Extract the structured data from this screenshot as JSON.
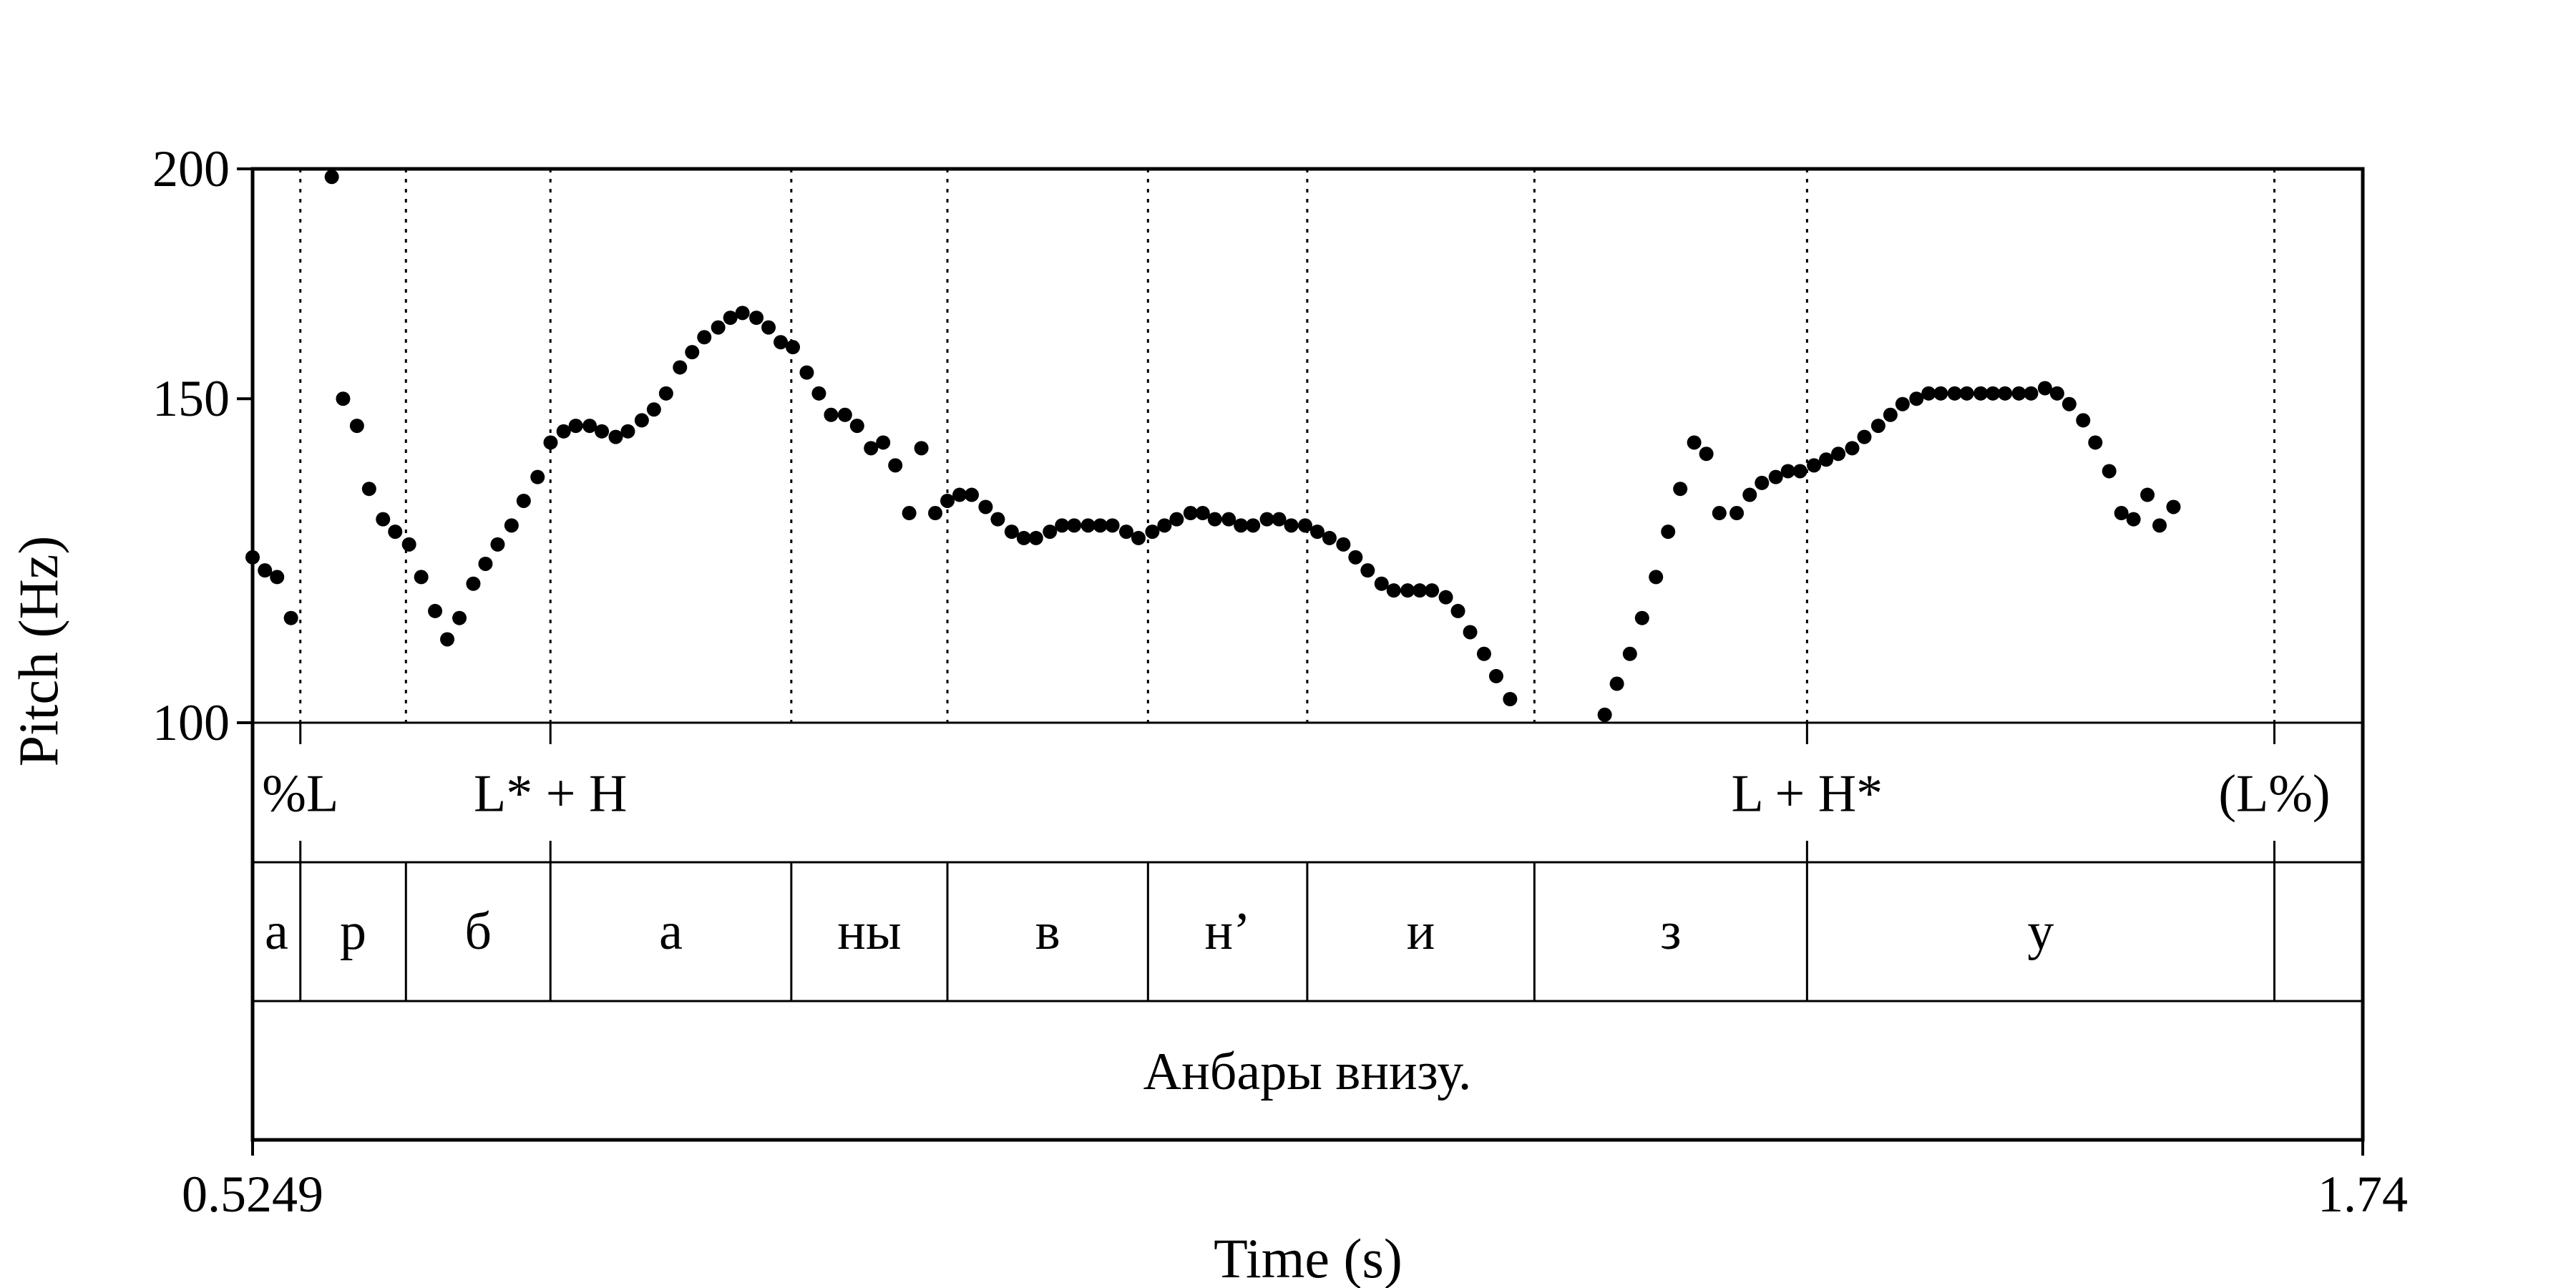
{
  "chart_data": {
    "type": "scatter",
    "title": "",
    "xlabel": "Time (s)",
    "ylabel": "Pitch (Hz)",
    "xlim": [
      0.5249,
      1.74
    ],
    "ylim": [
      100,
      200
    ],
    "y_scale": "log",
    "yticks": [
      "100",
      "150",
      "200"
    ],
    "xticks": [
      "0.5249",
      "1.74"
    ],
    "boundaries": [
      0.5524,
      0.6132,
      0.6964,
      0.8351,
      0.925,
      1.0405,
      1.1322,
      1.263,
      1.42,
      1.6891
    ],
    "tone_tier": [
      {
        "label": "%L",
        "time": 0.5524
      },
      {
        "label": "L* + H",
        "time": 0.6964
      },
      {
        "label": "L + H*",
        "time": 1.42
      },
      {
        "label": "(L%)",
        "time": 1.6891
      }
    ],
    "segments": [
      {
        "label": "а",
        "start": 0.5249,
        "end": 0.5524
      },
      {
        "label": "р",
        "start": 0.5524,
        "end": 0.6132
      },
      {
        "label": "б",
        "start": 0.6132,
        "end": 0.6964
      },
      {
        "label": "а",
        "start": 0.6964,
        "end": 0.8351
      },
      {
        "label": "ны",
        "start": 0.8351,
        "end": 0.925
      },
      {
        "label": "в",
        "start": 0.925,
        "end": 1.0405
      },
      {
        "label": "н’",
        "start": 1.0405,
        "end": 1.1322
      },
      {
        "label": "и",
        "start": 1.1322,
        "end": 1.263
      },
      {
        "label": "з",
        "start": 1.263,
        "end": 1.42
      },
      {
        "label": "у",
        "start": 1.42,
        "end": 1.6891
      },
      {
        "label": "",
        "start": 1.6891,
        "end": 1.74
      }
    ],
    "sentence": "Анбары внизу.",
    "points": [
      [
        0.5249,
        123
      ],
      [
        0.532,
        121
      ],
      [
        0.539,
        120
      ],
      [
        0.547,
        114
      ],
      [
        0.5705,
        198
      ],
      [
        0.577,
        150
      ],
      [
        0.585,
        145
      ],
      [
        0.592,
        134
      ],
      [
        0.6,
        129
      ],
      [
        0.607,
        127
      ],
      [
        0.615,
        125
      ],
      [
        0.622,
        120
      ],
      [
        0.63,
        115
      ],
      [
        0.637,
        111
      ],
      [
        0.644,
        114
      ],
      [
        0.652,
        119
      ],
      [
        0.659,
        122
      ],
      [
        0.666,
        125
      ],
      [
        0.674,
        128
      ],
      [
        0.681,
        132
      ],
      [
        0.689,
        136
      ],
      [
        0.6965,
        142
      ],
      [
        0.704,
        144
      ],
      [
        0.711,
        145
      ],
      [
        0.719,
        145
      ],
      [
        0.726,
        144
      ],
      [
        0.734,
        143
      ],
      [
        0.741,
        144
      ],
      [
        0.749,
        146
      ],
      [
        0.756,
        148
      ],
      [
        0.763,
        151
      ],
      [
        0.771,
        156
      ],
      [
        0.778,
        159
      ],
      [
        0.785,
        162
      ],
      [
        0.793,
        164
      ],
      [
        0.8,
        166
      ],
      [
        0.807,
        167
      ],
      [
        0.815,
        166
      ],
      [
        0.822,
        164
      ],
      [
        0.829,
        161
      ],
      [
        0.836,
        160
      ],
      [
        0.844,
        155
      ],
      [
        0.851,
        151
      ],
      [
        0.858,
        147
      ],
      [
        0.866,
        147
      ],
      [
        0.873,
        145
      ],
      [
        0.881,
        141
      ],
      [
        0.888,
        142
      ],
      [
        0.895,
        138
      ],
      [
        0.903,
        130
      ],
      [
        0.91,
        141
      ],
      [
        0.918,
        130
      ],
      [
        0.925,
        132
      ],
      [
        0.932,
        133
      ],
      [
        0.939,
        133
      ],
      [
        0.947,
        131
      ],
      [
        0.954,
        129
      ],
      [
        0.962,
        127
      ],
      [
        0.969,
        126
      ],
      [
        0.976,
        126
      ],
      [
        0.984,
        127
      ],
      [
        0.991,
        128
      ],
      [
        0.998,
        128
      ],
      [
        1.006,
        128
      ],
      [
        1.013,
        128
      ],
      [
        1.02,
        128
      ],
      [
        1.028,
        127
      ],
      [
        1.035,
        126
      ],
      [
        1.043,
        127
      ],
      [
        1.05,
        128
      ],
      [
        1.057,
        129
      ],
      [
        1.065,
        130
      ],
      [
        1.072,
        130
      ],
      [
        1.079,
        129
      ],
      [
        1.087,
        129
      ],
      [
        1.094,
        128
      ],
      [
        1.101,
        128
      ],
      [
        1.109,
        129
      ],
      [
        1.116,
        129
      ],
      [
        1.123,
        128
      ],
      [
        1.131,
        128
      ],
      [
        1.138,
        127
      ],
      [
        1.145,
        126
      ],
      [
        1.153,
        125
      ],
      [
        1.16,
        123
      ],
      [
        1.167,
        121
      ],
      [
        1.175,
        119
      ],
      [
        1.182,
        118
      ],
      [
        1.19,
        118
      ],
      [
        1.197,
        118
      ],
      [
        1.204,
        118
      ],
      [
        1.212,
        117
      ],
      [
        1.219,
        115
      ],
      [
        1.226,
        112
      ],
      [
        1.234,
        109
      ],
      [
        1.241,
        106
      ],
      [
        1.249,
        103
      ],
      [
        1.3035,
        101
      ],
      [
        1.3105,
        105
      ],
      [
        1.318,
        109
      ],
      [
        1.325,
        114
      ],
      [
        1.333,
        120
      ],
      [
        1.34,
        127
      ],
      [
        1.347,
        134
      ],
      [
        1.355,
        142
      ],
      [
        1.362,
        140
      ],
      [
        1.3695,
        130
      ],
      [
        1.3795,
        130
      ],
      [
        1.387,
        133
      ],
      [
        1.394,
        135
      ],
      [
        1.402,
        136
      ],
      [
        1.409,
        137
      ],
      [
        1.416,
        137
      ],
      [
        1.424,
        138
      ],
      [
        1.431,
        139
      ],
      [
        1.438,
        140
      ],
      [
        1.446,
        141
      ],
      [
        1.453,
        143
      ],
      [
        1.461,
        145
      ],
      [
        1.468,
        147
      ],
      [
        1.475,
        149
      ],
      [
        1.483,
        150
      ],
      [
        1.49,
        151
      ],
      [
        1.497,
        151
      ],
      [
        1.505,
        151
      ],
      [
        1.512,
        151
      ],
      [
        1.52,
        151
      ],
      [
        1.527,
        151
      ],
      [
        1.534,
        151
      ],
      [
        1.542,
        151
      ],
      [
        1.549,
        151
      ],
      [
        1.557,
        152
      ],
      [
        1.564,
        151
      ],
      [
        1.571,
        149
      ],
      [
        1.579,
        146
      ],
      [
        1.586,
        142
      ],
      [
        1.594,
        137
      ],
      [
        1.601,
        130
      ],
      [
        1.608,
        129
      ],
      [
        1.616,
        133
      ],
      [
        1.623,
        128
      ],
      [
        1.631,
        131
      ]
    ]
  }
}
